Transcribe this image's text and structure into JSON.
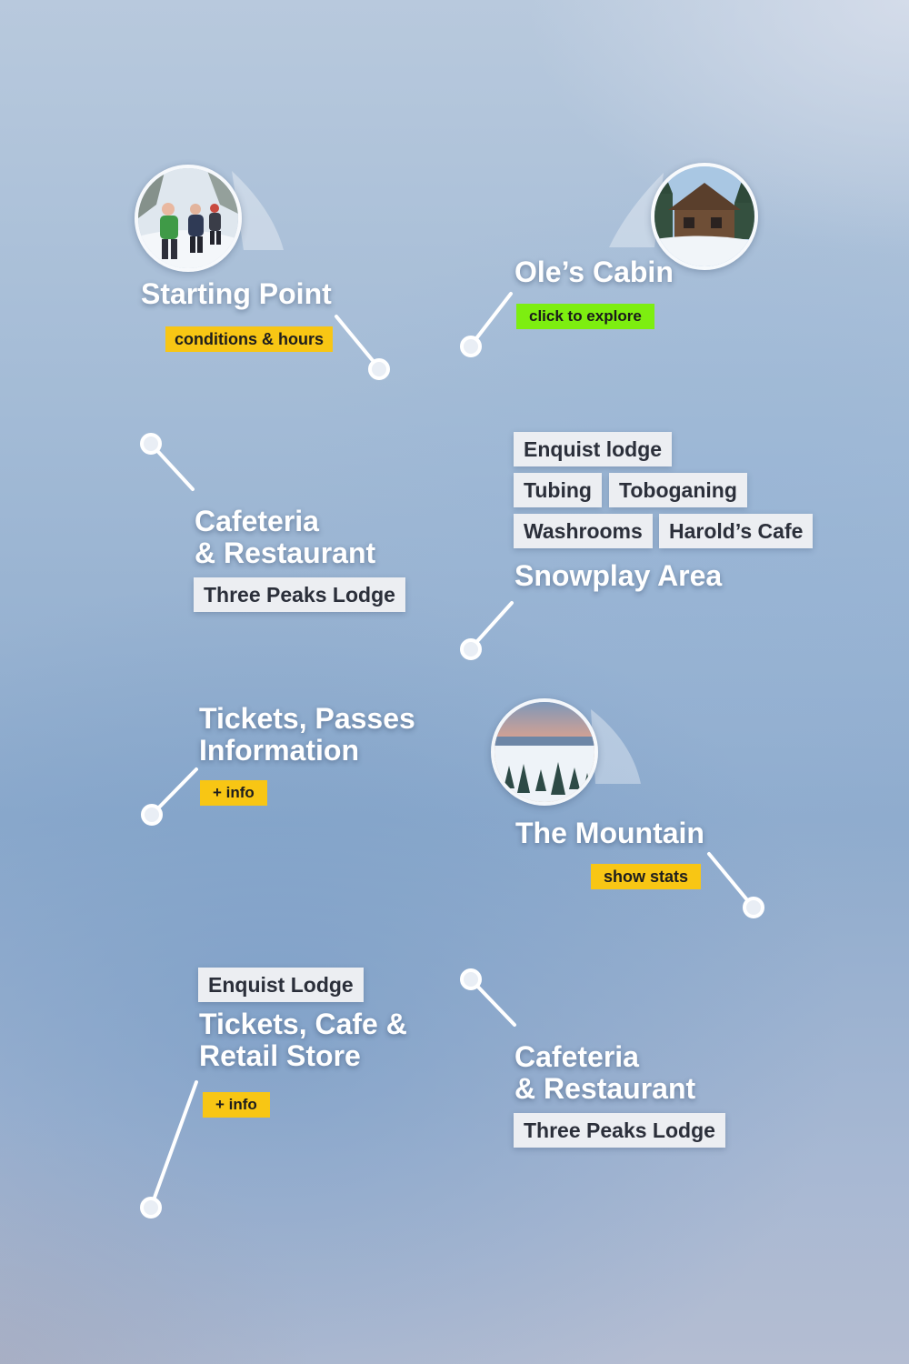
{
  "hotspots": {
    "starting_point": {
      "title": "Starting Point",
      "badge": "conditions & hours",
      "photo": "snowshoe-hikers-photo"
    },
    "oles_cabin": {
      "title": "Ole’s Cabin",
      "badge": "click to explore",
      "photo": "log-cabin-photo"
    },
    "cafeteria_1": {
      "title_line1": "Cafeteria",
      "title_line2": "& Restaurant",
      "chip": "Three Peaks Lodge"
    },
    "snowplay": {
      "title": "Snowplay Area",
      "chips": [
        "Enquist lodge",
        "Tubing",
        "Toboganing",
        "Washrooms",
        "Harold’s Cafe"
      ]
    },
    "tickets_info": {
      "title_line1": "Tickets, Passes",
      "title_line2": "Information",
      "badge": "+ info"
    },
    "mountain": {
      "title": "The Mountain",
      "badge": "show stats",
      "photo": "mountain-sunset-photo"
    },
    "enquist": {
      "chip": "Enquist Lodge",
      "title_line1": "Tickets, Cafe &",
      "title_line2": "Retail Store",
      "badge": "+ info"
    },
    "cafeteria_2": {
      "title_line1": "Cafeteria",
      "title_line2": "& Restaurant",
      "chip": "Three Peaks Lodge"
    }
  },
  "colors": {
    "yellow_badge": "#f8c614",
    "green_badge": "#7dee10",
    "chip_bg": "#eceef2",
    "title_text": "#ffffff"
  }
}
